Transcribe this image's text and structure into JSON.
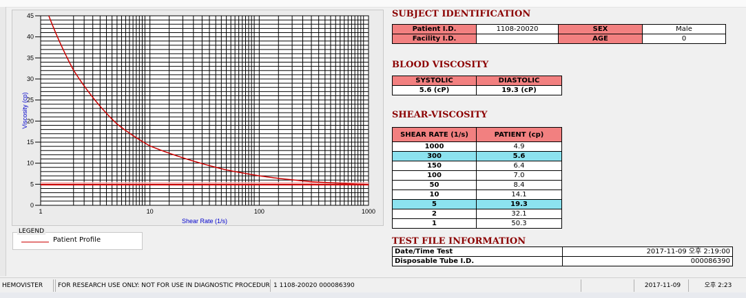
{
  "subject_identification": {
    "title": "SUBJECT IDENTIFICATION",
    "patient_id_label": "Patient I.D.",
    "patient_id_value": "1108-20020",
    "sex_label": "SEX",
    "sex_value": "Male",
    "facility_id_label": "Facility I.D.",
    "facility_id_value": "",
    "age_label": "AGE",
    "age_value": "0"
  },
  "blood_viscosity": {
    "title": "BLOOD VISCOSITY",
    "systolic_label": "SYSTOLIC",
    "diastolic_label": "DIASTOLIC",
    "systolic_value": "5.6 (cP)",
    "diastolic_value": "19.3 (cP)"
  },
  "shear_viscosity": {
    "title": "SHEAR-VISCOSITY",
    "col_rate": "SHEAR RATE (1/s)",
    "col_patient": "PATIENT (cp)",
    "rows": [
      {
        "rate": "1000",
        "value": "4.9"
      },
      {
        "rate": "300",
        "value": "5.6"
      },
      {
        "rate": "150",
        "value": "6.4"
      },
      {
        "rate": "100",
        "value": "7.0"
      },
      {
        "rate": "50",
        "value": "8.4"
      },
      {
        "rate": "10",
        "value": "14.1"
      },
      {
        "rate": "5",
        "value": "19.3"
      },
      {
        "rate": "2",
        "value": "32.1"
      },
      {
        "rate": "1",
        "value": "50.3"
      }
    ]
  },
  "test_file": {
    "title": "TEST FILE INFORMATION",
    "date_label": "Date/Time Test",
    "date_value": "2017-11-09   오후 2:19:00",
    "tube_label": "Disposable Tube I.D.",
    "tube_value": "000086390"
  },
  "legend": {
    "title": "LEGEND",
    "items": [
      {
        "label": "Patient Profile",
        "color": "#cc0000"
      }
    ]
  },
  "status_bar": {
    "app": "HEMOVISTER",
    "notice": "FOR RESEARCH USE ONLY: NOT FOR USE IN DIAGNOSTIC PROCEDURES",
    "record": "1  1108-20020  000086390",
    "blank": "",
    "date": "2017-11-09",
    "time": "오후 2:23"
  },
  "chart_data": {
    "type": "line",
    "xlabel": "Shear Rate (1/s)",
    "ylabel": "Viscosity (cp)",
    "x_scale": "log",
    "xlim": [
      1,
      1000
    ],
    "ylim": [
      0,
      45
    ],
    "x_ticks": [
      "1",
      "10",
      "100",
      "1000"
    ],
    "y_ticks": [
      "0",
      "5",
      "10",
      "15",
      "20",
      "25",
      "30",
      "35",
      "40",
      "45"
    ],
    "grid": true,
    "series": [
      {
        "name": "Patient Profile",
        "color": "#cc0000",
        "x": [
          1000,
          300,
          150,
          100,
          50,
          10,
          5,
          2,
          1
        ],
        "y": [
          4.9,
          5.6,
          6.4,
          7.0,
          8.4,
          14.1,
          19.3,
          32.1,
          50.3
        ]
      }
    ],
    "reference_lines": [
      {
        "y": 4.9,
        "color": "#cc0000"
      },
      {
        "y": 5.3,
        "color": "#ffaaaa"
      }
    ]
  }
}
